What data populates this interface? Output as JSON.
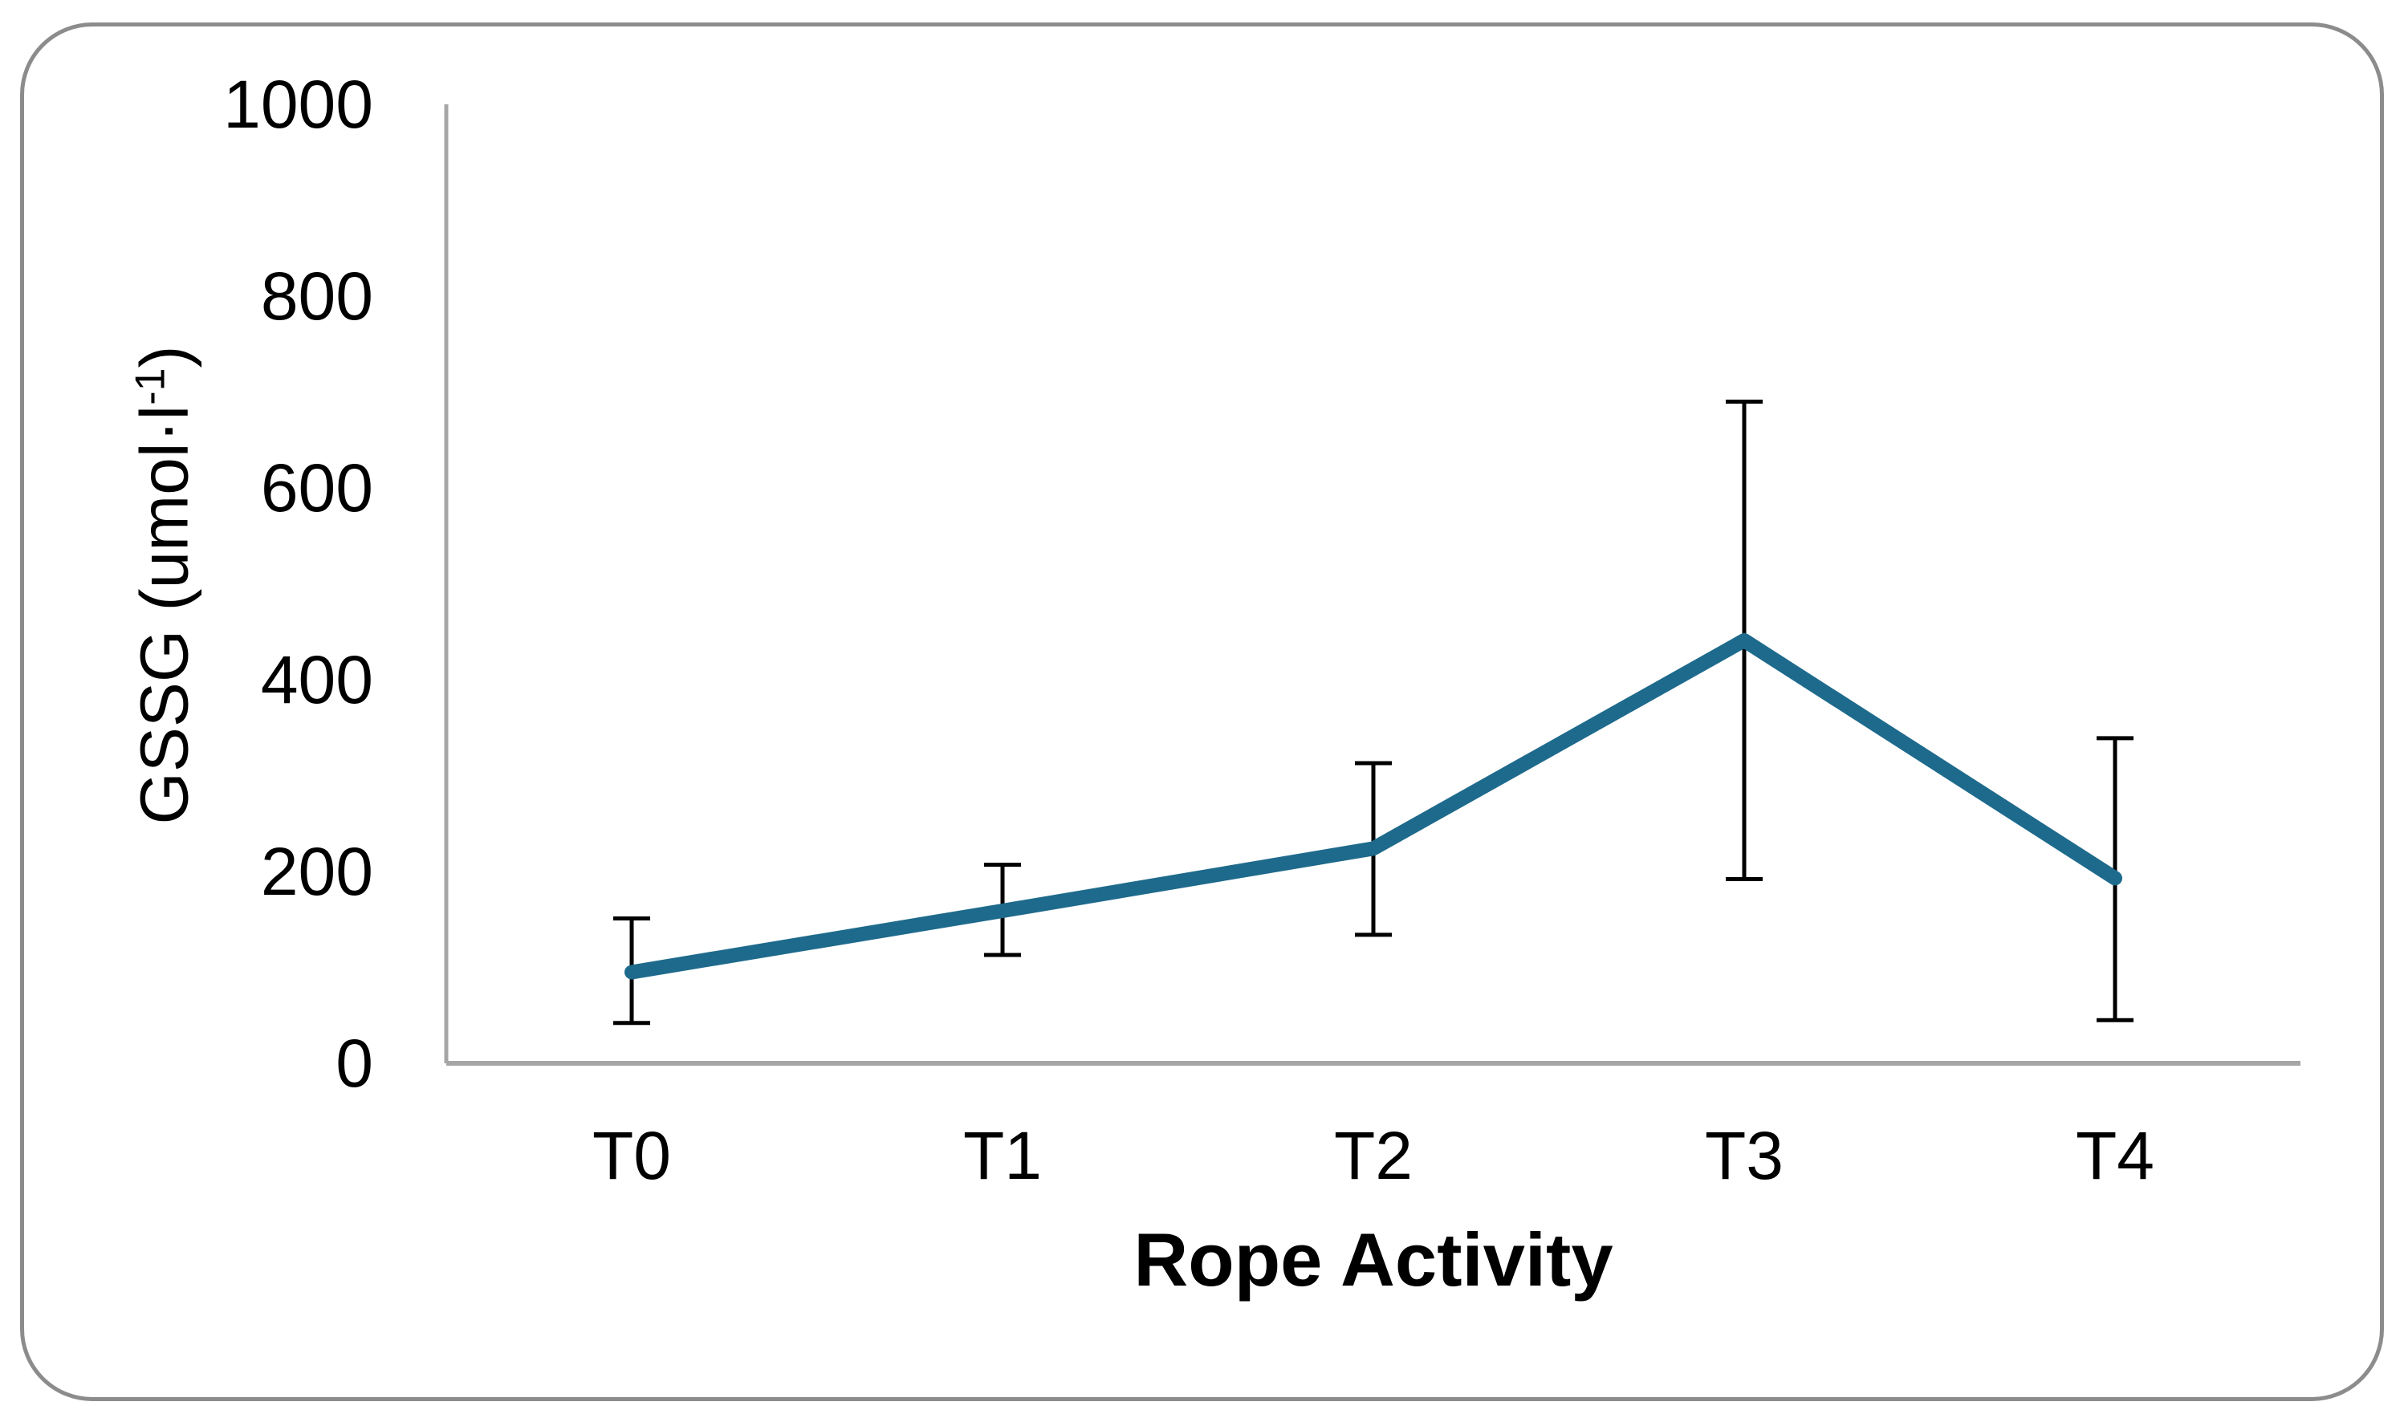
{
  "chart_data": {
    "type": "line",
    "categories": [
      "T0",
      "T1",
      "T2",
      "T3",
      "T4"
    ],
    "series": [
      {
        "values": [
          95,
          159,
          224,
          441,
          193
        ],
        "error_upper": [
          151,
          207,
          313,
          690,
          339
        ],
        "error_lower": [
          42,
          113,
          134,
          192,
          45
        ]
      }
    ],
    "xlabel": "Rope Activity",
    "ylabel": "GSSG (umol·l-1)",
    "ylabel_parts": {
      "base": "GSSG (umol·l",
      "sup": "-1",
      "end": ")"
    },
    "ylim": [
      0,
      1000
    ],
    "ytick_step": 200,
    "ytick_labels": [
      "0",
      "200",
      "400",
      "600",
      "800",
      "1000"
    ],
    "grid": false,
    "legend": "none",
    "line_color": "#1E6A8C",
    "error_bar_color": "#000000",
    "axis_color": "#A6A6A6",
    "card_border_color": "#8C8C8C"
  }
}
